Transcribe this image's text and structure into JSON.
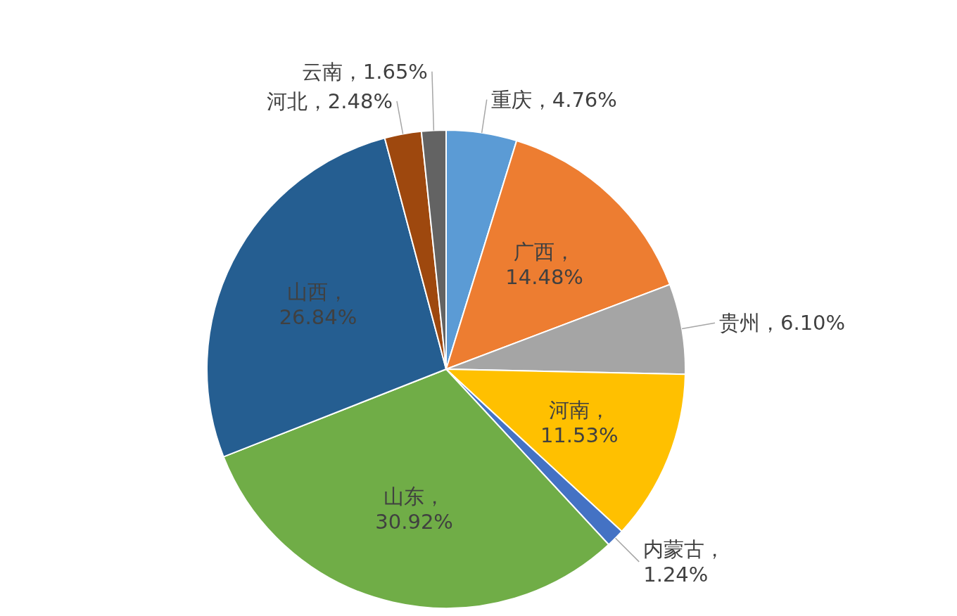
{
  "chart_data": {
    "type": "pie",
    "categories": [
      "重庆",
      "广西",
      "贵州",
      "河南",
      "内蒙古",
      "山东",
      "山西",
      "河北",
      "云南"
    ],
    "values": [
      4.76,
      14.48,
      6.1,
      11.53,
      1.24,
      30.92,
      26.84,
      2.48,
      1.65
    ],
    "value_labels": [
      "，4.76%",
      "，\n14.48%",
      "，6.10%",
      "，\n11.53%",
      "，\n1.24%",
      "，\n30.92%",
      "，\n26.84%",
      "，2.48%",
      "，1.65%"
    ],
    "colors": [
      "#5b9bd5",
      "#ed7d31",
      "#a5a5a5",
      "#ffc000",
      "#4472c4",
      "#70ad47",
      "#255e91",
      "#9e480e",
      "#636363"
    ]
  }
}
